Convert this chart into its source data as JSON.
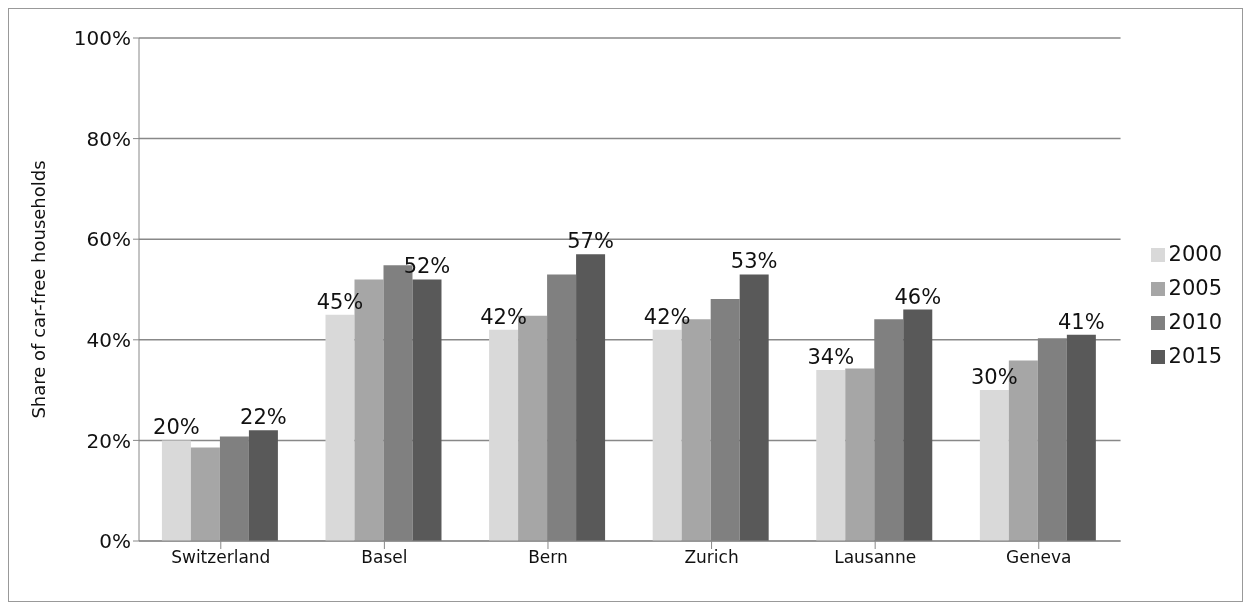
{
  "chart_data": {
    "type": "bar",
    "ylabel": "Share of car-free households",
    "categories": [
      "Switzerland",
      "Basel",
      "Bern",
      "Zurich",
      "Lausanne",
      "Geneva"
    ],
    "series": [
      {
        "name": "2000",
        "color": "#d9d9d9",
        "values": [
          20,
          45,
          42,
          42,
          34,
          30
        ],
        "value_labels": [
          "20%",
          "45%",
          "42%",
          "42%",
          "34%",
          "30%"
        ]
      },
      {
        "name": "2005",
        "color": "#a6a6a6",
        "values": [
          18.6,
          52,
          44.8,
          44.1,
          34.3,
          35.9
        ]
      },
      {
        "name": "2010",
        "color": "#808080",
        "values": [
          20.8,
          54.8,
          53,
          48.1,
          44.1,
          40.3
        ]
      },
      {
        "name": "2015",
        "color": "#595959",
        "values": [
          22,
          52,
          57,
          53,
          46,
          41
        ],
        "value_labels": [
          "22%",
          "52%",
          "57%",
          "53%",
          "46%",
          "41%"
        ]
      }
    ],
    "ylim": [
      0,
      100
    ],
    "yticks": [
      {
        "value": 0,
        "label": "0%"
      },
      {
        "value": 20,
        "label": "20%"
      },
      {
        "value": 40,
        "label": "40%"
      },
      {
        "value": 60,
        "label": "60%"
      },
      {
        "value": 80,
        "label": "80%"
      },
      {
        "value": 100,
        "label": "100%"
      }
    ],
    "grid": "y",
    "legend": "right"
  }
}
